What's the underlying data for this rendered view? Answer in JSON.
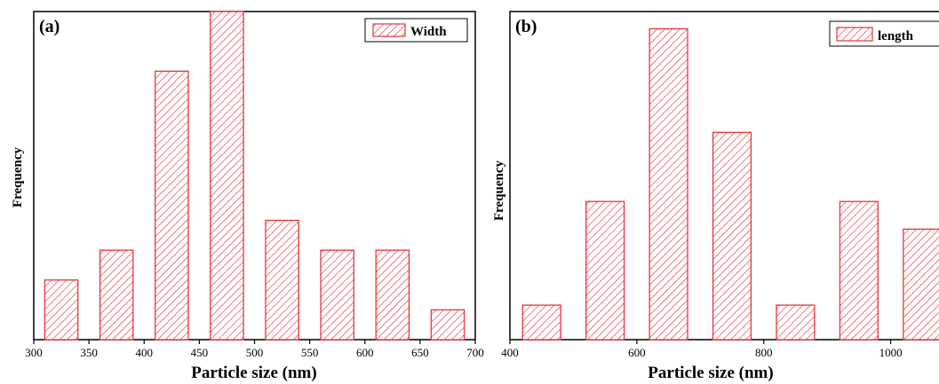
{
  "chart_data": [
    {
      "type": "bar",
      "panel_label": "(a)",
      "xlabel": "Particle size (nm)",
      "ylabel": "Frequency",
      "legend": "Width",
      "legend_position": "top-right",
      "xlim": [
        300,
        700
      ],
      "ylim": [
        0,
        11
      ],
      "xticks": [
        300,
        350,
        400,
        450,
        500,
        550,
        600,
        650,
        700
      ],
      "grid": false,
      "bin_width": 30,
      "bar_color": "#e8343c",
      "bars": [
        {
          "x": 325,
          "value": 2
        },
        {
          "x": 375,
          "value": 3
        },
        {
          "x": 425,
          "value": 9
        },
        {
          "x": 475,
          "value": 11
        },
        {
          "x": 525,
          "value": 4
        },
        {
          "x": 575,
          "value": 3
        },
        {
          "x": 625,
          "value": 3
        },
        {
          "x": 675,
          "value": 1
        }
      ]
    },
    {
      "type": "bar",
      "panel_label": "(b)",
      "xlabel": "Particle size (nm)",
      "ylabel": "Frequency",
      "legend": "length",
      "legend_position": "top-right",
      "xlim": [
        400,
        1100
      ],
      "ylim": [
        0,
        9.5
      ],
      "xticks": [
        400,
        600,
        800,
        1000
      ],
      "grid": false,
      "bin_width": 60,
      "bar_color": "#e8343c",
      "bars": [
        {
          "x": 450,
          "value": 1
        },
        {
          "x": 550,
          "value": 4
        },
        {
          "x": 650,
          "value": 9
        },
        {
          "x": 750,
          "value": 6
        },
        {
          "x": 850,
          "value": 1
        },
        {
          "x": 950,
          "value": 4
        },
        {
          "x": 1050,
          "value": 3.2
        }
      ]
    }
  ]
}
